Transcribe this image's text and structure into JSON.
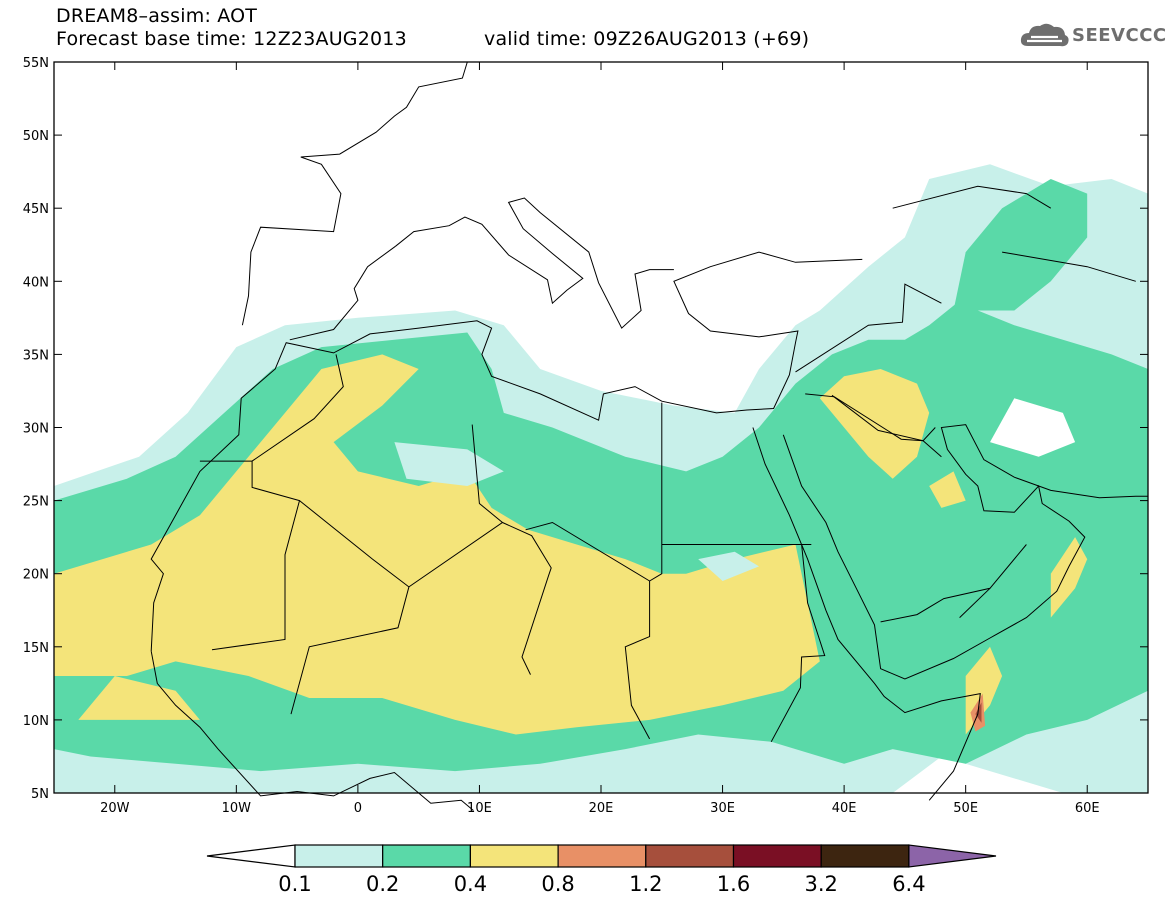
{
  "title": {
    "line1": "DREAM8–assim: AOT",
    "base_time": "Forecast base time: 12Z23AUG2013",
    "valid_time": "valid time: 09Z26AUG2013 (+69)"
  },
  "logo": {
    "text": "SEEVCCC",
    "icon": "cloud-icon"
  },
  "map": {
    "projection": "cylindrical",
    "lon_range": [
      -25,
      65
    ],
    "lat_range": [
      5,
      55
    ],
    "lat_ticks": [
      {
        "lat": 55,
        "label": "55N"
      },
      {
        "lat": 50,
        "label": "50N"
      },
      {
        "lat": 45,
        "label": "45N"
      },
      {
        "lat": 40,
        "label": "40N"
      },
      {
        "lat": 35,
        "label": "35N"
      },
      {
        "lat": 30,
        "label": "30N"
      },
      {
        "lat": 25,
        "label": "25N"
      },
      {
        "lat": 20,
        "label": "20N"
      },
      {
        "lat": 15,
        "label": "15N"
      },
      {
        "lat": 10,
        "label": "10N"
      },
      {
        "lat": 5,
        "label": "5N"
      }
    ],
    "lon_ticks": [
      {
        "lon": -20,
        "label": "20W"
      },
      {
        "lon": -10,
        "label": "10W"
      },
      {
        "lon": 0,
        "label": "0"
      },
      {
        "lon": 10,
        "label": "10E"
      },
      {
        "lon": 20,
        "label": "20E"
      },
      {
        "lon": 30,
        "label": "30E"
      },
      {
        "lon": 40,
        "label": "40E"
      },
      {
        "lon": 50,
        "label": "50E"
      },
      {
        "lon": 60,
        "label": "60E"
      }
    ]
  },
  "colors": {
    "background": "#ffffff",
    "below": "#ffffff",
    "aot_0_1": "#c8f0ea",
    "aot_0_2": "#5ad9a8",
    "aot_0_4": "#f4e47a",
    "aot_0_8": "#e89066",
    "aot_1_2": "#a64f3c",
    "aot_1_6": "#7a0f24",
    "aot_3_2": "#3d2510",
    "aot_6_4": "#8c64a8"
  },
  "colorbar": {
    "labels": [
      "0.1",
      "0.2",
      "0.4",
      "0.8",
      "1.2",
      "1.6",
      "3.2",
      "6.4"
    ],
    "bins": [
      {
        "color": "#ffffff",
        "range": "<0.1"
      },
      {
        "color": "#c8f0ea",
        "range": "0.1-0.2"
      },
      {
        "color": "#5ad9a8",
        "range": "0.2-0.4"
      },
      {
        "color": "#f4e47a",
        "range": "0.4-0.8"
      },
      {
        "color": "#e89066",
        "range": "0.8-1.2"
      },
      {
        "color": "#a64f3c",
        "range": "1.2-1.6"
      },
      {
        "color": "#7a0f24",
        "range": "1.6-3.2"
      },
      {
        "color": "#3d2510",
        "range": "3.2-6.4"
      },
      {
        "color": "#8c64a8",
        "range": ">6.4"
      }
    ]
  }
}
